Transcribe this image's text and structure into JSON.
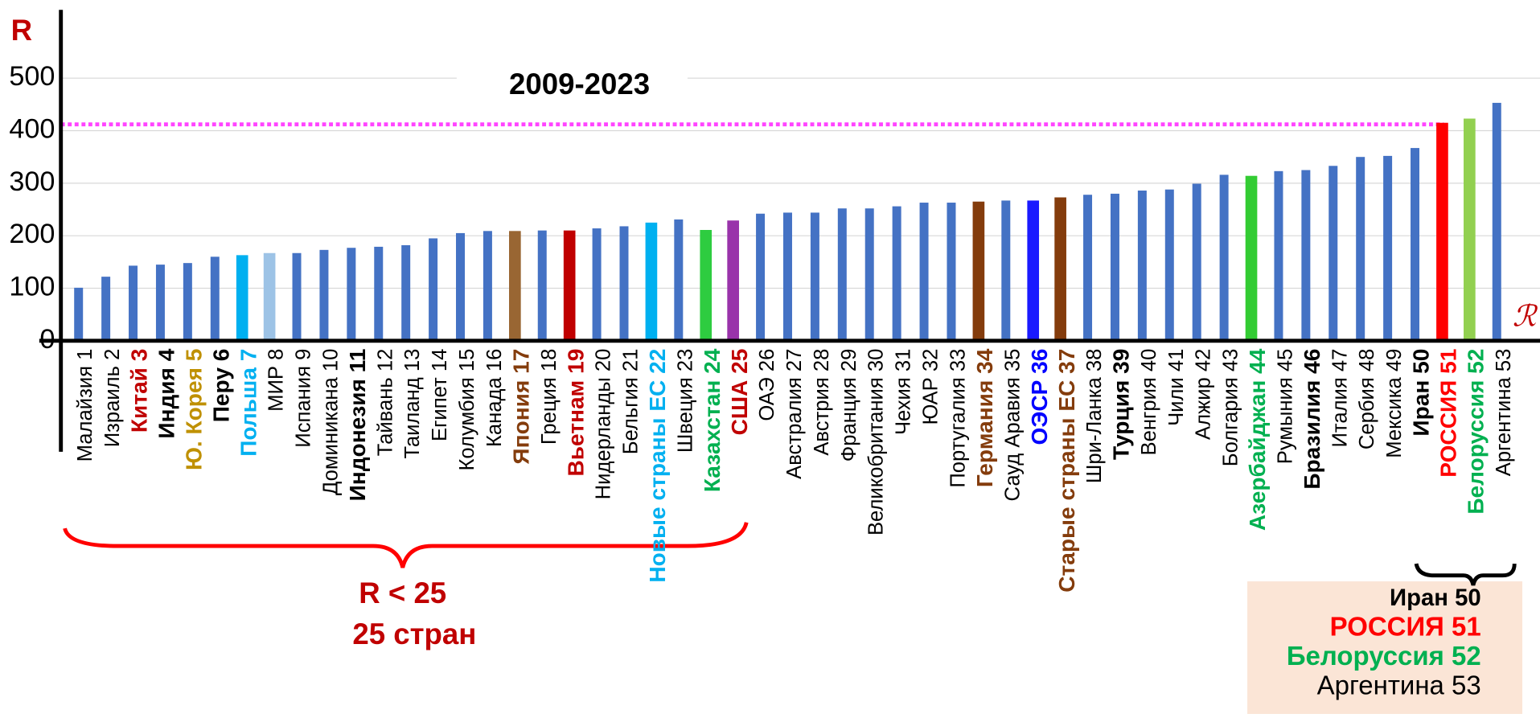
{
  "chart_data": {
    "type": "bar",
    "title": "2009-2023",
    "y_label": "R",
    "x_label": "ℛ",
    "categories": [
      "Малайзия 1",
      "Израиль 2",
      "Китай 3",
      "Индия 4",
      "Ю. Корея 5",
      "Перу 6",
      "Польша 7",
      "МИР 8",
      "Испания 9",
      "Доминикана 10",
      "Индонезия 11",
      "Тайвань 12",
      "Таиланд 13",
      "Египет 14",
      "Колумбия 15",
      "Канада 16",
      "Япония 17",
      "Греция 18",
      "Вьетнам 19",
      "Нидерланды 20",
      "Бельгия 21",
      "Новые страны ЕС 22",
      "Швеция 23",
      "Казахстан 24",
      "США 25",
      "ОАЭ 26",
      "Австралия 27",
      "Австрия 28",
      "Франция 29",
      "Великобритания 30",
      "Чехия 31",
      "ЮАР 32",
      "Португалия 33",
      "Германия 34",
      "Сауд Аравия 35",
      "ОЭСР 36",
      "Старые страны ЕС 37",
      "Шри-Ланка 38",
      "Турция 39",
      "Венгрия 40",
      "Чили 41",
      "Алжир 42",
      "Болгария 43",
      "Азербайджан 44",
      "Румыния 45",
      "Бразилия 46",
      "Италия 47",
      "Сербия 48",
      "Мексика 49",
      "Иран 50",
      "РОССИЯ 51",
      "Белоруссия 52",
      "Аргентина 53"
    ],
    "values": [
      101,
      122,
      143,
      145,
      148,
      160,
      163,
      167,
      167,
      173,
      177,
      179,
      182,
      195,
      205,
      209,
      209,
      210,
      210,
      214,
      218,
      225,
      231,
      211,
      229,
      242,
      244,
      244,
      252,
      252,
      256,
      263,
      263,
      265,
      267,
      267,
      273,
      278,
      280,
      286,
      288,
      299,
      316,
      314,
      323,
      325,
      333,
      350,
      352,
      367,
      415,
      423,
      453
    ],
    "color": "#4472c4",
    "colors": [
      null,
      null,
      null,
      null,
      null,
      null,
      "#00b0f0",
      "#9dc3e6",
      null,
      null,
      null,
      null,
      null,
      null,
      null,
      null,
      "#996633",
      null,
      "#c00000",
      null,
      null,
      "#00b0f0",
      null,
      "#2ecc40",
      "#9933aa",
      null,
      null,
      null,
      null,
      null,
      null,
      null,
      null,
      "#843c0c",
      null,
      "#1a1aff",
      "#843c0c",
      null,
      null,
      null,
      null,
      null,
      null,
      "#33cc33",
      null,
      null,
      null,
      null,
      null,
      null,
      "#ff0000",
      "#92d050",
      null
    ],
    "label_colors": [
      null,
      null,
      "#c00000",
      null,
      "#bf9000",
      null,
      "#00b0f0",
      null,
      null,
      null,
      null,
      null,
      null,
      null,
      null,
      null,
      "#843c0c",
      null,
      "#c00000",
      null,
      null,
      "#00b0f0",
      null,
      "#00b050",
      "#c00000",
      null,
      null,
      null,
      null,
      null,
      null,
      null,
      null,
      "#843c0c",
      null,
      "#0000ff",
      "#843c0c",
      null,
      null,
      null,
      null,
      null,
      null,
      "#00b050",
      null,
      null,
      null,
      null,
      null,
      null,
      "#ff0000",
      "#00b050",
      null
    ],
    "label_bold": [
      2,
      3,
      4,
      5,
      6,
      10,
      16,
      18,
      21,
      23,
      24,
      33,
      35,
      36,
      38,
      43,
      45,
      49,
      50,
      51
    ],
    "ylim": [
      0,
      630
    ],
    "yticks": [
      0,
      100,
      200,
      300,
      400,
      500
    ],
    "grid": true,
    "reference_line": 412,
    "reference_color": "#ff44ff",
    "annotations": [
      "R < 25",
      "25 стран"
    ],
    "box": [
      {
        "text": "Иран 50",
        "color": "#000000"
      },
      {
        "text": "РОССИЯ 51",
        "color": "#ff0000"
      },
      {
        "text": "Белоруссия 52",
        "color": "#00b050"
      },
      {
        "text": "Аргентина 53",
        "color": "#000000"
      }
    ]
  }
}
